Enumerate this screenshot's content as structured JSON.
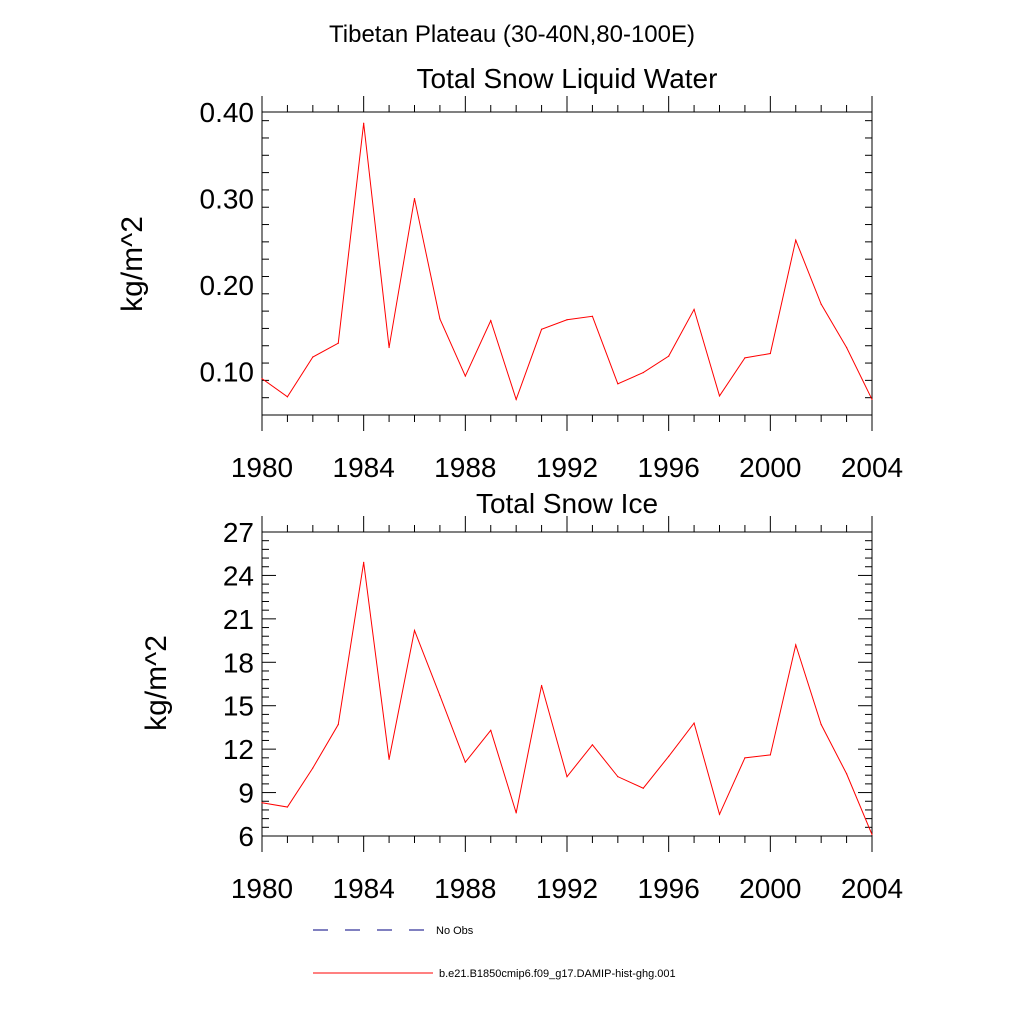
{
  "figure": {
    "supertitle": "Tibetan Plateau (30-40N,80-100E)"
  },
  "legend": [
    {
      "label": "No Obs",
      "color": "#000080",
      "style": "dashed"
    },
    {
      "label": "b.e21.B1850cmip6.f09_g17.DAMIP-hist-ghg.001",
      "color": "#ff0000",
      "style": "solid"
    }
  ],
  "chart_data": [
    {
      "type": "line",
      "title": "Total Snow Liquid Water",
      "xlabel": "",
      "ylabel": "kg/m^2",
      "xlim": [
        1980,
        2004
      ],
      "ylim": [
        0.05,
        0.4
      ],
      "xticks": [
        1980,
        1984,
        1988,
        1992,
        1996,
        2000,
        2004
      ],
      "xtick_labels": [
        "1980",
        "1984",
        "1988",
        "1992",
        "1996",
        "2000",
        "2004"
      ],
      "yticks": [
        0.1,
        0.2,
        0.3,
        0.4
      ],
      "ytick_labels": [
        "0.10",
        "0.20",
        "0.30",
        "0.40"
      ],
      "grid": false,
      "series": [
        {
          "name": "b.e21.B1850cmip6.f09_g17.DAMIP-hist-ghg.001",
          "color": "#ff0000",
          "x": [
            1980,
            1981,
            1982,
            1983,
            1984,
            1985,
            1986,
            1987,
            1988,
            1989,
            1990,
            1991,
            1992,
            1993,
            1994,
            1995,
            1996,
            1997,
            1998,
            1999,
            2000,
            2001,
            2002,
            2003,
            2004
          ],
          "y": [
            0.092,
            0.071,
            0.117,
            0.133,
            0.387,
            0.128,
            0.3,
            0.161,
            0.095,
            0.159,
            0.068,
            0.149,
            0.16,
            0.164,
            0.086,
            0.099,
            0.118,
            0.172,
            0.072,
            0.116,
            0.121,
            0.252,
            0.178,
            0.128,
            0.068
          ]
        }
      ]
    },
    {
      "type": "line",
      "title": "Total Snow Ice",
      "xlabel": "",
      "ylabel": "kg/m^2",
      "xlim": [
        1980,
        2004
      ],
      "ylim": [
        6,
        27
      ],
      "xticks": [
        1980,
        1984,
        1988,
        1992,
        1996,
        2000,
        2004
      ],
      "xtick_labels": [
        "1980",
        "1984",
        "1988",
        "1992",
        "1996",
        "2000",
        "2004"
      ],
      "yticks": [
        6,
        9,
        12,
        15,
        18,
        21,
        24,
        27
      ],
      "ytick_labels": [
        "6",
        "9",
        "12",
        "15",
        "18",
        "21",
        "24",
        "27"
      ],
      "grid": false,
      "series": [
        {
          "name": "b.e21.B1850cmip6.f09_g17.DAMIP-hist-ghg.001",
          "color": "#ff0000",
          "x": [
            1980,
            1981,
            1982,
            1983,
            1984,
            1985,
            1986,
            1987,
            1988,
            1989,
            1990,
            1991,
            1992,
            1993,
            1994,
            1995,
            1996,
            1997,
            1998,
            1999,
            2000,
            2001,
            2002,
            2003,
            2004
          ],
          "y": [
            8.3,
            8.0,
            10.7,
            13.7,
            24.9,
            11.3,
            20.2,
            15.7,
            11.1,
            13.3,
            7.6,
            16.4,
            10.1,
            12.3,
            10.1,
            9.3,
            11.5,
            13.8,
            7.5,
            11.4,
            11.6,
            19.2,
            13.7,
            10.3,
            6.1
          ]
        }
      ]
    }
  ]
}
